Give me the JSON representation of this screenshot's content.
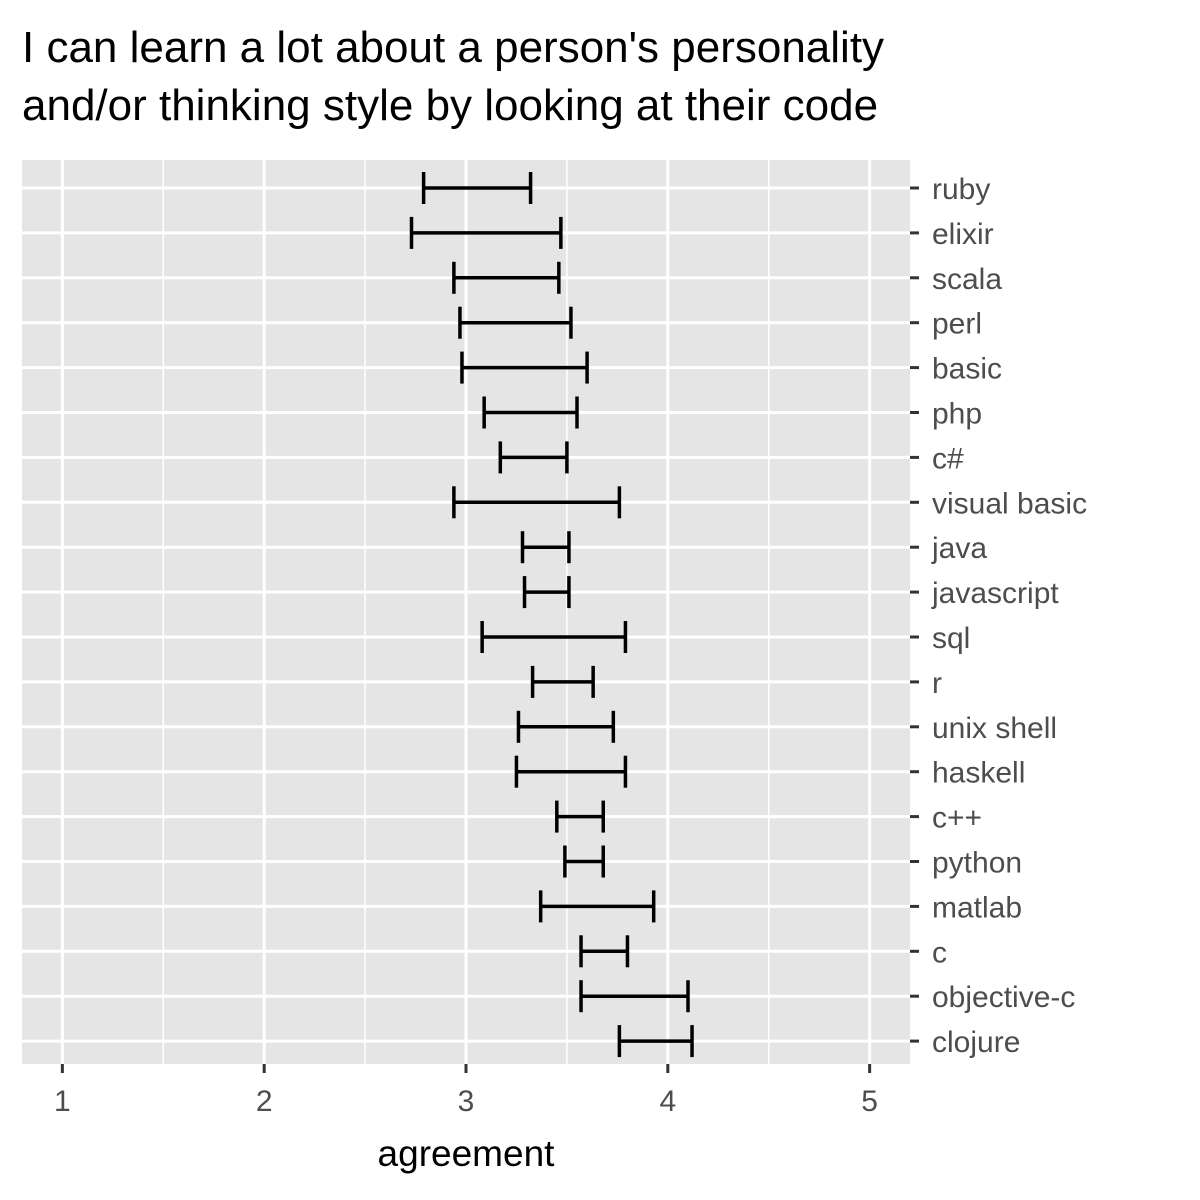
{
  "chart_data": {
    "type": "errorbar",
    "title": "I can learn a lot about a person's personality and/or thinking style by looking at their code",
    "title_lines": [
      "I can learn a lot about a person's personality",
      "and/or thinking style by looking at their code"
    ],
    "xlabel": "agreement",
    "ylabel": "",
    "xlim": [
      0.8,
      5.2
    ],
    "x_ticks": [
      1,
      2,
      3,
      4,
      5
    ],
    "grid": true,
    "panel_background": "#e5e5e5",
    "bar_color": "#000000",
    "categories": [
      "ruby",
      "elixir",
      "scala",
      "perl",
      "basic",
      "php",
      "c#",
      "visual basic",
      "java",
      "javascript",
      "sql",
      "r",
      "unix shell",
      "haskell",
      "c++",
      "python",
      "matlab",
      "c",
      "objective-c",
      "clojure"
    ],
    "intervals": [
      {
        "category": "ruby",
        "low": 2.79,
        "high": 3.32
      },
      {
        "category": "elixir",
        "low": 2.73,
        "high": 3.47
      },
      {
        "category": "scala",
        "low": 2.94,
        "high": 3.46
      },
      {
        "category": "perl",
        "low": 2.97,
        "high": 3.52
      },
      {
        "category": "basic",
        "low": 2.98,
        "high": 3.6
      },
      {
        "category": "php",
        "low": 3.09,
        "high": 3.55
      },
      {
        "category": "c#",
        "low": 3.17,
        "high": 3.5
      },
      {
        "category": "visual basic",
        "low": 2.94,
        "high": 3.76
      },
      {
        "category": "java",
        "low": 3.28,
        "high": 3.51
      },
      {
        "category": "javascript",
        "low": 3.29,
        "high": 3.51
      },
      {
        "category": "sql",
        "low": 3.08,
        "high": 3.79
      },
      {
        "category": "r",
        "low": 3.33,
        "high": 3.63
      },
      {
        "category": "unix shell",
        "low": 3.26,
        "high": 3.73
      },
      {
        "category": "haskell",
        "low": 3.25,
        "high": 3.79
      },
      {
        "category": "c++",
        "low": 3.45,
        "high": 3.68
      },
      {
        "category": "python",
        "low": 3.49,
        "high": 3.68
      },
      {
        "category": "matlab",
        "low": 3.37,
        "high": 3.93
      },
      {
        "category": "c",
        "low": 3.57,
        "high": 3.8
      },
      {
        "category": "objective-c",
        "low": 3.57,
        "high": 4.1
      },
      {
        "category": "clojure",
        "low": 3.76,
        "high": 4.12
      }
    ]
  }
}
